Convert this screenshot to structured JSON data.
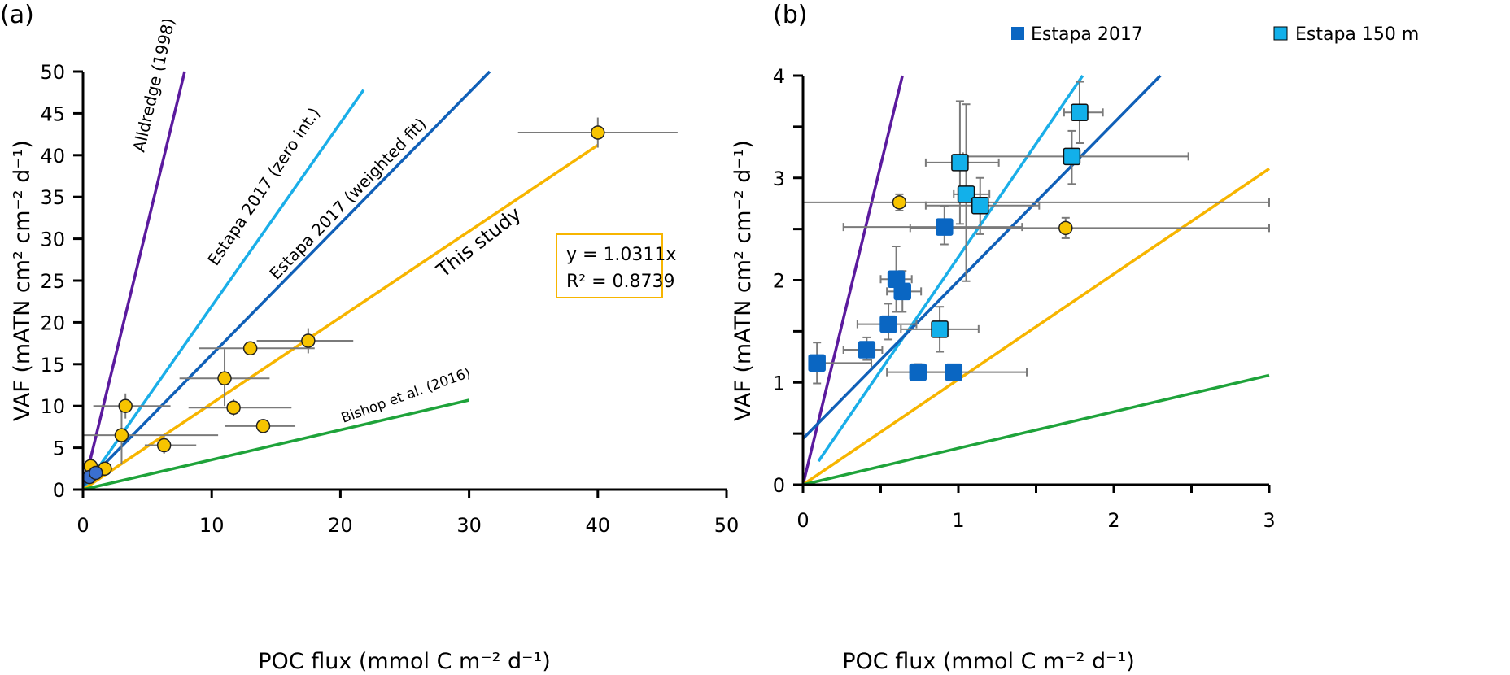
{
  "chart_data": [
    {
      "panel_label": "(a)",
      "type": "scatter",
      "xlabel": "POC flux (mmol C m⁻² d⁻¹)",
      "ylabel": "VAF (mATN cm² cm⁻² d⁻¹)",
      "xlim": [
        0,
        50
      ],
      "ylim": [
        0,
        50
      ],
      "xticks": [
        0,
        10,
        20,
        30,
        40,
        50
      ],
      "yticks": [
        0,
        5,
        10,
        15,
        20,
        25,
        30,
        35,
        40,
        45,
        50
      ],
      "grid": false,
      "lines": [
        {
          "name": "Alldredge (1998)",
          "color": "#5b1a9e",
          "x": [
            0,
            7.9
          ],
          "y": [
            0,
            50
          ]
        },
        {
          "name": "Estapa 2017 (zero int.)",
          "color": "#1aaee8",
          "x": [
            0,
            21.8
          ],
          "y": [
            0,
            47.8
          ]
        },
        {
          "name": "Estapa 2017 (weighted fit)",
          "color": "#1060b8",
          "x": [
            0,
            31.6
          ],
          "y": [
            0.45,
            50
          ]
        },
        {
          "name": "This study",
          "color": "#f7b500",
          "x": [
            0,
            40
          ],
          "y": [
            0,
            41.2
          ]
        },
        {
          "name": "Bishop et al. (2016)",
          "color": "#1ea33a",
          "x": [
            0,
            30
          ],
          "y": [
            0,
            10.7
          ]
        }
      ],
      "equation_box": {
        "line1": "y = 1.0311x",
        "line2": "R² = 0.8739",
        "border_color": "#f7b500"
      },
      "series": [
        {
          "name": "This study",
          "marker": "circle",
          "color": "#f7c400",
          "points": [
            {
              "x": 40.0,
              "y": 42.7,
              "xerr": [
                6.2,
                6.2
              ],
              "yerr": [
                1.8,
                1.8
              ]
            },
            {
              "x": 17.5,
              "y": 17.8,
              "xerr": [
                4.0,
                3.5
              ],
              "yerr": [
                1.5,
                1.5
              ]
            },
            {
              "x": 13.0,
              "y": 16.9,
              "xerr": [
                4.0,
                5.0
              ],
              "yerr": [
                0,
                0
              ]
            },
            {
              "x": 11.0,
              "y": 13.3,
              "xerr": [
                3.5,
                3.5
              ],
              "yerr": [
                3.3,
                3.5
              ]
            },
            {
              "x": 11.7,
              "y": 9.8,
              "xerr": [
                3.5,
                4.5
              ],
              "yerr": [
                1.0,
                1.0
              ]
            },
            {
              "x": 14.0,
              "y": 7.6,
              "xerr": [
                3.0,
                2.5
              ],
              "yerr": [
                0,
                0
              ]
            },
            {
              "x": 3.3,
              "y": 10.0,
              "xerr": [
                2.5,
                3.5
              ],
              "yerr": [
                1.5,
                1.5
              ]
            },
            {
              "x": 3.0,
              "y": 6.5,
              "xerr": [
                3.0,
                7.5
              ],
              "yerr": [
                3.5,
                3.5
              ]
            },
            {
              "x": 6.3,
              "y": 5.3,
              "xerr": [
                1.5,
                2.5
              ],
              "yerr": [
                1.0,
                1.0
              ]
            },
            {
              "x": 0.6,
              "y": 2.8,
              "xerr": [
                0.4,
                0.6
              ],
              "yerr": [
                0.2,
                0.2
              ]
            },
            {
              "x": 1.7,
              "y": 2.5,
              "xerr": [
                0,
                0
              ],
              "yerr": [
                0,
                0
              ]
            }
          ]
        },
        {
          "name": "Estapa 2017",
          "marker": "circle",
          "color": "#3a6fcf",
          "points": [
            {
              "x": 0.5,
              "y": 1.5,
              "xerr": [
                0.3,
                0.3
              ],
              "yerr": [
                0.5,
                0.5
              ]
            },
            {
              "x": 1.0,
              "y": 2.0,
              "xerr": [
                0.3,
                0.3
              ],
              "yerr": [
                0.5,
                0.5
              ]
            }
          ]
        }
      ]
    },
    {
      "panel_label": "(b)",
      "type": "scatter",
      "xlabel": "POC flux (mmol C m⁻² d⁻¹)",
      "ylabel": "VAF (mATN cm² cm⁻² d⁻¹)",
      "xlim": [
        0,
        3
      ],
      "ylim": [
        0,
        4
      ],
      "xticks": [
        0,
        0.5,
        1,
        1.5,
        2,
        2.5,
        3
      ],
      "xtick_labels": [
        "0",
        "",
        "1",
        "",
        "2",
        "",
        "3"
      ],
      "yticks": [
        0,
        0.5,
        1,
        1.5,
        2,
        2.5,
        3,
        3.5,
        4
      ],
      "ytick_labels": [
        "0",
        "",
        "1",
        "",
        "2",
        "",
        "3",
        "",
        "4"
      ],
      "grid": false,
      "legend": {
        "position": "top",
        "entries": [
          {
            "label": "Estapa 2017",
            "color": "#0a66c2"
          },
          {
            "label": "Estapa 150 m",
            "color": "#12b0ea"
          }
        ]
      },
      "lines": [
        {
          "name": "Alldredge (1998)",
          "color": "#5b1a9e",
          "x": [
            0,
            0.64
          ],
          "y": [
            0,
            4
          ]
        },
        {
          "name": "Estapa 2017 (zero int.)",
          "color": "#1aaee8",
          "x": [
            0.1,
            1.8
          ],
          "y": [
            0.23,
            4
          ]
        },
        {
          "name": "Estapa 2017 (weighted fit)",
          "color": "#1060b8",
          "x": [
            0,
            2.3
          ],
          "y": [
            0.45,
            4
          ]
        },
        {
          "name": "This study",
          "color": "#f7b500",
          "x": [
            0,
            3
          ],
          "y": [
            0,
            3.09
          ]
        },
        {
          "name": "Bishop et al. (2016)",
          "color": "#1ea33a",
          "x": [
            0,
            3
          ],
          "y": [
            0,
            1.07
          ]
        }
      ],
      "series": [
        {
          "name": "Estapa 2017",
          "marker": "square",
          "color": "#0a66c2",
          "points": [
            {
              "x": 0.91,
              "y": 2.52,
              "xerr": [
                0.65,
                0.5
              ],
              "yerr": [
                0.17,
                0.2
              ]
            },
            {
              "x": 0.6,
              "y": 2.01,
              "xerr": [
                0.1,
                0.1
              ],
              "yerr": [
                0.32,
                0.32
              ]
            },
            {
              "x": 0.64,
              "y": 1.89,
              "xerr": [
                0.1,
                0.12
              ],
              "yerr": [
                0.2,
                0.2
              ]
            },
            {
              "x": 0.55,
              "y": 1.57,
              "xerr": [
                0.2,
                0.18
              ],
              "yerr": [
                0.15,
                0.2
              ]
            },
            {
              "x": 0.41,
              "y": 1.32,
              "xerr": [
                0.15,
                0.1
              ],
              "yerr": [
                0.1,
                0.12
              ]
            },
            {
              "x": 0.09,
              "y": 1.19,
              "xerr": [
                0.05,
                0.35
              ],
              "yerr": [
                0.2,
                0.2
              ]
            },
            {
              "x": 0.74,
              "y": 1.1,
              "xerr": [
                0.2,
                0.2
              ],
              "yerr": [
                0.08,
                0.08
              ]
            },
            {
              "x": 0.97,
              "y": 1.1,
              "xerr": [
                0.25,
                0.47
              ],
              "yerr": [
                0.05,
                0.05
              ]
            }
          ]
        },
        {
          "name": "Estapa 150 m",
          "marker": "square",
          "color": "#12b0ea",
          "points": [
            {
              "x": 1.78,
              "y": 3.64,
              "xerr": [
                0.1,
                0.15
              ],
              "yerr": [
                0.3,
                0.3
              ]
            },
            {
              "x": 1.73,
              "y": 3.21,
              "xerr": [
                0.7,
                0.75
              ],
              "yerr": [
                0.27,
                0.25
              ]
            },
            {
              "x": 1.01,
              "y": 3.15,
              "xerr": [
                0.22,
                0.25
              ],
              "yerr": [
                0.6,
                0.6
              ]
            },
            {
              "x": 1.05,
              "y": 2.84,
              "xerr": [
                0.08,
                0.15
              ],
              "yerr": [
                0.85,
                0.88
              ]
            },
            {
              "x": 1.14,
              "y": 2.73,
              "xerr": [
                0.35,
                0.38
              ],
              "yerr": [
                0.28,
                0.27
              ]
            },
            {
              "x": 0.88,
              "y": 1.52,
              "xerr": [
                0.25,
                0.25
              ],
              "yerr": [
                0.22,
                0.22
              ]
            }
          ]
        },
        {
          "name": "This study",
          "marker": "circle",
          "color": "#f7c400",
          "points": [
            {
              "x": 0.62,
              "y": 2.76,
              "xerr": [
                0.62,
                2.38
              ],
              "yerr": [
                0.08,
                0.08
              ]
            },
            {
              "x": 1.69,
              "y": 2.51,
              "xerr": [
                1.0,
                1.31
              ],
              "yerr": [
                0.1,
                0.1
              ]
            }
          ]
        }
      ]
    }
  ]
}
